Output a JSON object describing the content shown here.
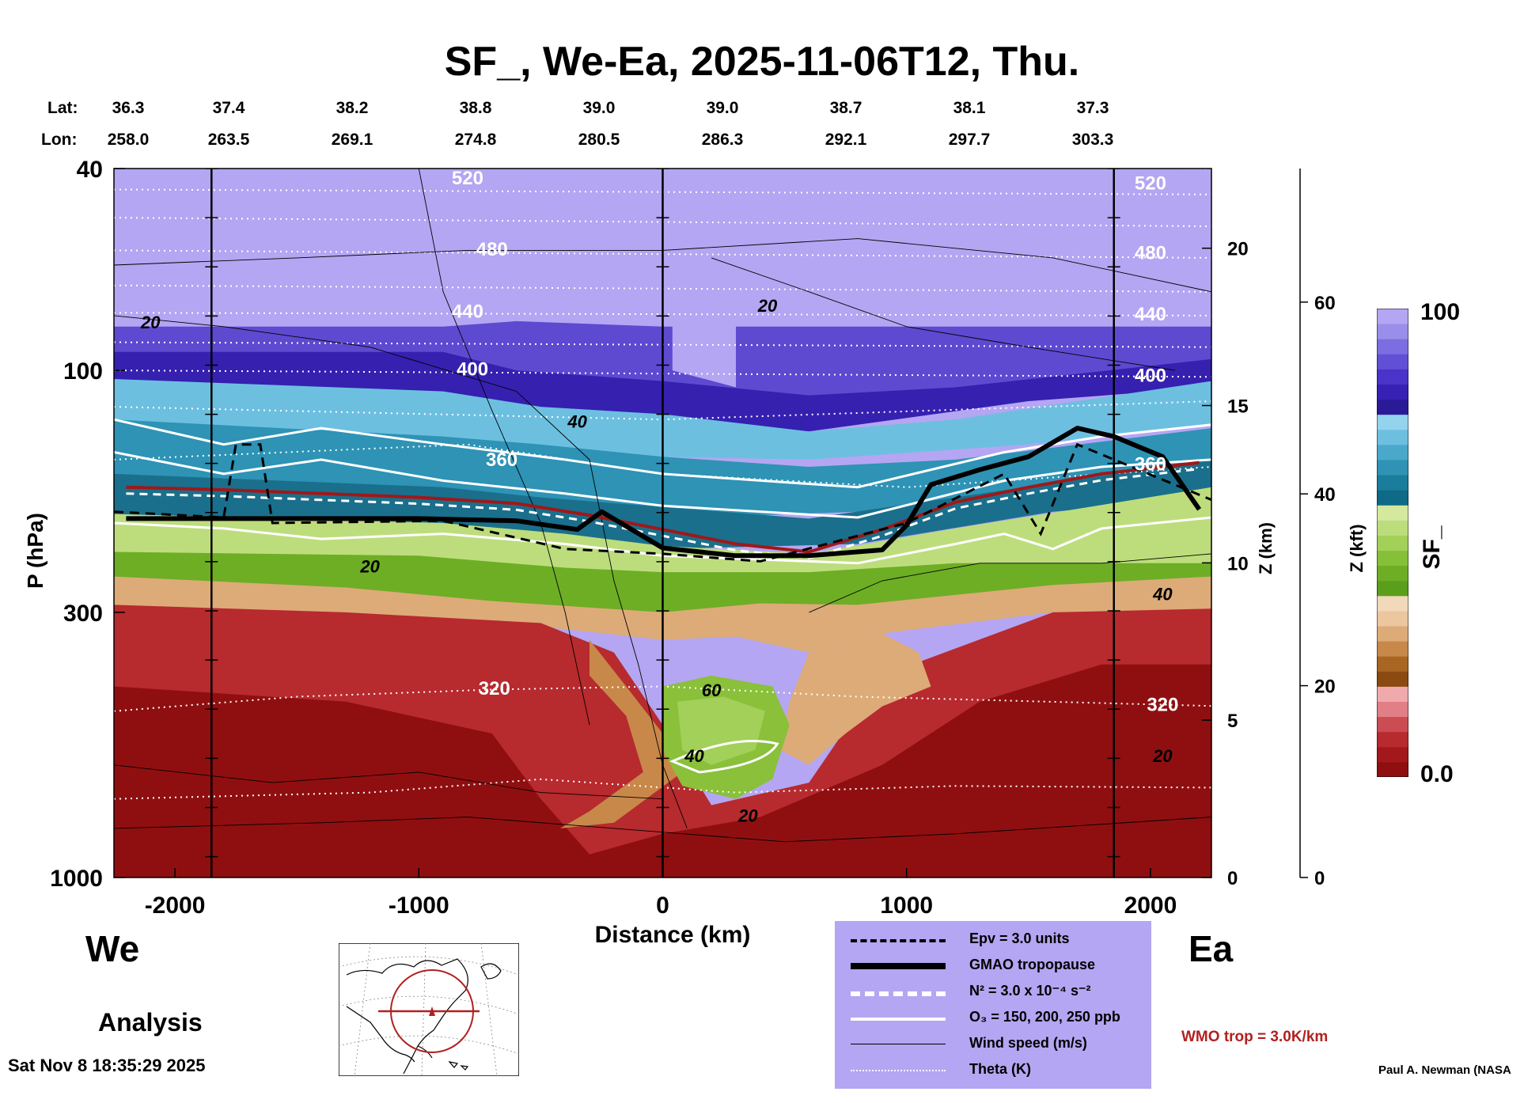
{
  "title": "SF_, We-Ea, 2025-11-06T12, Thu.",
  "header": {
    "lat_label": "Lat:",
    "lon_label": "Lon:",
    "lats": [
      "36.3",
      "37.4",
      "38.2",
      "38.8",
      "39.0",
      "39.0",
      "38.7",
      "38.1",
      "37.3"
    ],
    "lons": [
      "258.0",
      "263.5",
      "269.1",
      "274.8",
      "280.5",
      "286.3",
      "292.1",
      "297.7",
      "303.3"
    ]
  },
  "labels": {
    "west": "We",
    "east": "Ea",
    "analysis": "Analysis",
    "timestamp": "Sat Nov  8 18:35:29 2025",
    "credit": "Paul A. Newman (NASA",
    "wmo": "WMO trop = 3.0K/km"
  },
  "legend": {
    "epv": "Epv = 3.0 units",
    "tropopause": "GMAO tropopause",
    "n2": "N² = 3.0 x 10⁻⁴ s⁻²",
    "o3": "O₃ = 150, 200, 250 ppb",
    "wind": "Wind speed (m/s)",
    "theta": "Theta (K)"
  },
  "colorbar": {
    "label": "SF_",
    "max": "100",
    "min": "0.0",
    "colors": [
      "#8f0f10",
      "#a3181b",
      "#b72a2e",
      "#cc4c54",
      "#e27e86",
      "#f0a9ac",
      "#8b4a12",
      "#a86622",
      "#c8884a",
      "#ddab78",
      "#ecc69e",
      "#f2d9bc",
      "#5a9e1c",
      "#6dae25",
      "#86c038",
      "#a3d058",
      "#bddd7c",
      "#d4e99e",
      "#0e6a87",
      "#1a7d9c",
      "#2e93b5",
      "#4aa8cb",
      "#6dbfe0",
      "#93d3ee",
      "#2a1a98",
      "#3621b4",
      "#4a33c8",
      "#6150d6",
      "#7c6ee0",
      "#9a8eea",
      "#b4a6f2"
    ]
  },
  "chart_data": {
    "type": "heatmap",
    "title": "SF_, We-Ea, 2025-11-06T12, Thu.",
    "xlabel": "Distance (km)",
    "ylabel": "P (hPa)",
    "y2label": "Z (km)",
    "y3label": "Z (kft)",
    "xlim": [
      -2250,
      2250
    ],
    "ylim": [
      1000,
      40
    ],
    "ylog": true,
    "xticks": [
      -2000,
      -1000,
      0,
      1000,
      2000
    ],
    "yticks": [
      40,
      100,
      300,
      1000
    ],
    "zkm_ticks": [
      0,
      5,
      10,
      15,
      20
    ],
    "zkft_ticks": [
      0,
      20,
      40,
      60
    ],
    "colorbar_range": [
      0.0,
      100
    ],
    "vertical_lines_km": [
      -1850,
      0,
      1850
    ],
    "theta_labels": [
      {
        "x": -800,
        "p": 42,
        "text": "520"
      },
      {
        "x": 2000,
        "p": 43,
        "text": "520"
      },
      {
        "x": -700,
        "p": 58,
        "text": "480"
      },
      {
        "x": 2000,
        "p": 59,
        "text": "480"
      },
      {
        "x": -800,
        "p": 77,
        "text": "440"
      },
      {
        "x": 2000,
        "p": 78,
        "text": "440"
      },
      {
        "x": -780,
        "p": 100,
        "text": "400"
      },
      {
        "x": 2000,
        "p": 103,
        "text": "400"
      },
      {
        "x": -660,
        "p": 151,
        "text": "360"
      },
      {
        "x": 2000,
        "p": 154,
        "text": "360"
      },
      {
        "x": -690,
        "p": 426,
        "text": "320"
      },
      {
        "x": 2050,
        "p": 459,
        "text": "320"
      }
    ],
    "wind_labels": [
      {
        "x": -2100,
        "p": 81,
        "text": "20"
      },
      {
        "x": 430,
        "p": 75,
        "text": "20"
      },
      {
        "x": -350,
        "p": 127,
        "text": "40"
      },
      {
        "x": -1200,
        "p": 245,
        "text": "20"
      },
      {
        "x": 2050,
        "p": 278,
        "text": "40"
      },
      {
        "x": 200,
        "p": 430,
        "text": "60"
      },
      {
        "x": 130,
        "p": 580,
        "text": "40"
      },
      {
        "x": 350,
        "p": 760,
        "text": "20"
      },
      {
        "x": 2050,
        "p": 580,
        "text": "20"
      }
    ],
    "tropopause_p": {
      "x": [
        -2200,
        -1800,
        -1400,
        -1000,
        -600,
        -350,
        -250,
        0,
        300,
        600,
        900,
        1000,
        1100,
        1300,
        1500,
        1700,
        1850,
        2050,
        2200
      ],
      "p": [
        196,
        196,
        196,
        196,
        198,
        206,
        190,
        224,
        232,
        232,
        226,
        202,
        168,
        157,
        148,
        130,
        135,
        148,
        188
      ]
    },
    "wmo_tropopause_p": {
      "x": [
        -2200,
        -1800,
        -1400,
        -1000,
        -600,
        -300,
        0,
        300,
        600,
        900,
        1200,
        1500,
        1800,
        2200
      ],
      "p": [
        170,
        172,
        175,
        178,
        183,
        193,
        206,
        220,
        228,
        206,
        182,
        170,
        160,
        152
      ]
    }
  }
}
